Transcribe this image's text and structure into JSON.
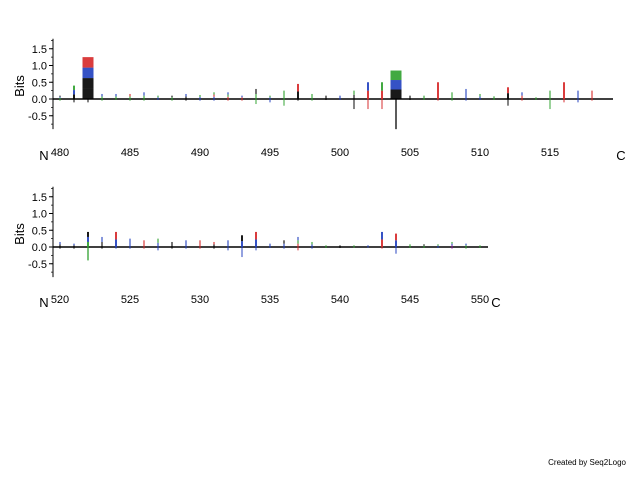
{
  "chart_data": [
    {
      "type": "sequence-logo",
      "ylabel": "Bits",
      "yticks": [
        "1.5",
        "1.0",
        "0.5",
        "0.0",
        "-0.5"
      ],
      "ylim": [
        -0.9,
        1.8
      ],
      "n_label": "N",
      "c_label": "C",
      "x_tick_labels": [
        "480",
        "485",
        "490",
        "495",
        "500",
        "505",
        "510",
        "515"
      ],
      "positions": [
        480,
        481,
        482,
        483,
        484,
        485,
        486,
        487,
        488,
        489,
        490,
        491,
        492,
        493,
        494,
        495,
        496,
        497,
        498,
        499,
        500,
        501,
        502,
        503,
        504,
        505,
        506,
        507,
        508,
        509,
        510,
        511,
        512,
        513,
        514,
        515,
        516,
        517,
        518
      ],
      "columns": [
        {
          "pos": 480,
          "up": 0.1,
          "down": -0.05,
          "colors": [
            "#2ca02c",
            "#1f3fbf",
            "#000000"
          ]
        },
        {
          "pos": 481,
          "up": 0.4,
          "down": -0.1,
          "colors": [
            "#000000",
            "#1f3fbf",
            "#2ca02c"
          ]
        },
        {
          "pos": 482,
          "up": 1.25,
          "down": -0.1,
          "colors": [
            "#000000",
            "#000000",
            "#1f3fbf",
            "#d62728"
          ]
        },
        {
          "pos": 483,
          "up": 0.15,
          "down": -0.05,
          "colors": [
            "#2ca02c",
            "#1f3fbf"
          ]
        },
        {
          "pos": 484,
          "up": 0.15,
          "down": -0.03,
          "colors": [
            "#2ca02c",
            "#1f3fbf"
          ]
        },
        {
          "pos": 485,
          "up": 0.15,
          "down": -0.05,
          "colors": [
            "#2ca02c",
            "#d62728"
          ]
        },
        {
          "pos": 486,
          "up": 0.2,
          "down": -0.05,
          "colors": [
            "#2ca02c",
            "#1f3fbf"
          ]
        },
        {
          "pos": 487,
          "up": 0.1,
          "down": -0.03,
          "colors": [
            "#1f3fbf",
            "#2ca02c"
          ]
        },
        {
          "pos": 488,
          "up": 0.1,
          "down": -0.05,
          "colors": [
            "#2ca02c",
            "#000000"
          ]
        },
        {
          "pos": 489,
          "up": 0.15,
          "down": -0.05,
          "colors": [
            "#000000",
            "#1f3fbf"
          ]
        },
        {
          "pos": 490,
          "up": 0.12,
          "down": -0.05,
          "colors": [
            "#1f3fbf",
            "#2ca02c"
          ]
        },
        {
          "pos": 491,
          "up": 0.2,
          "down": -0.05,
          "colors": [
            "#1f3fbf",
            "#d62728",
            "#2ca02c"
          ]
        },
        {
          "pos": 492,
          "up": 0.2,
          "down": -0.05,
          "colors": [
            "#d62728",
            "#2ca02c",
            "#1f3fbf"
          ]
        },
        {
          "pos": 493,
          "up": 0.1,
          "down": -0.05,
          "colors": [
            "#d62728",
            "#1f3fbf"
          ]
        },
        {
          "pos": 494,
          "up": 0.3,
          "down": -0.15,
          "colors": [
            "#2ca02c",
            "#000000"
          ]
        },
        {
          "pos": 495,
          "up": 0.1,
          "down": -0.1,
          "colors": [
            "#1f3fbf",
            "#2ca02c"
          ]
        },
        {
          "pos": 496,
          "up": 0.25,
          "down": -0.2,
          "colors": [
            "#2ca02c"
          ]
        },
        {
          "pos": 497,
          "up": 0.45,
          "down": -0.05,
          "colors": [
            "#000000",
            "#d62728"
          ]
        },
        {
          "pos": 498,
          "up": 0.15,
          "down": -0.05,
          "colors": [
            "#2ca02c"
          ]
        },
        {
          "pos": 499,
          "up": 0.1,
          "down": -0.03,
          "colors": [
            "#000000"
          ]
        },
        {
          "pos": 500,
          "up": 0.1,
          "down": -0.03,
          "colors": [
            "#1f3fbf"
          ]
        },
        {
          "pos": 501,
          "up": 0.25,
          "down": -0.3,
          "colors": [
            "#000000",
            "#2ca02c"
          ]
        },
        {
          "pos": 502,
          "up": 0.5,
          "down": -0.3,
          "colors": [
            "#d62728",
            "#1f3fbf"
          ]
        },
        {
          "pos": 503,
          "up": 0.5,
          "down": -0.3,
          "colors": [
            "#d62728",
            "#2ca02c"
          ]
        },
        {
          "pos": 504,
          "up": 0.85,
          "down": -0.9,
          "colors": [
            "#000000",
            "#1f3fbf",
            "#2ca02c"
          ]
        },
        {
          "pos": 505,
          "up": 0.1,
          "down": -0.03,
          "colors": [
            "#000000"
          ]
        },
        {
          "pos": 506,
          "up": 0.1,
          "down": -0.03,
          "colors": [
            "#2ca02c"
          ]
        },
        {
          "pos": 507,
          "up": 0.5,
          "down": -0.05,
          "colors": [
            "#d62728"
          ]
        },
        {
          "pos": 508,
          "up": 0.2,
          "down": -0.05,
          "colors": [
            "#2ca02c"
          ]
        },
        {
          "pos": 509,
          "up": 0.3,
          "down": -0.05,
          "colors": [
            "#1f3fbf"
          ]
        },
        {
          "pos": 510,
          "up": 0.15,
          "down": -0.03,
          "colors": [
            "#1f3fbf",
            "#2ca02c"
          ]
        },
        {
          "pos": 511,
          "up": 0.08,
          "down": -0.03,
          "colors": [
            "#2ca02c"
          ]
        },
        {
          "pos": 512,
          "up": 0.35,
          "down": -0.2,
          "colors": [
            "#000000",
            "#d62728"
          ]
        },
        {
          "pos": 513,
          "up": 0.2,
          "down": -0.05,
          "colors": [
            "#d62728",
            "#1f3fbf"
          ]
        },
        {
          "pos": 514,
          "up": 0.05,
          "down": -0.03,
          "colors": [
            "#2ca02c"
          ]
        },
        {
          "pos": 515,
          "up": 0.25,
          "down": -0.3,
          "colors": [
            "#2ca02c"
          ]
        },
        {
          "pos": 516,
          "up": 0.5,
          "down": -0.1,
          "colors": [
            "#d62728"
          ]
        },
        {
          "pos": 517,
          "up": 0.25,
          "down": -0.1,
          "colors": [
            "#1f3fbf"
          ]
        },
        {
          "pos": 518,
          "up": 0.25,
          "down": -0.05,
          "colors": [
            "#d62728"
          ]
        }
      ]
    },
    {
      "type": "sequence-logo",
      "ylabel": "Bits",
      "yticks": [
        "1.5",
        "1.0",
        "0.5",
        "0.0",
        "-0.5"
      ],
      "ylim": [
        -0.9,
        1.8
      ],
      "n_label": "N",
      "c_label": "C",
      "x_tick_labels": [
        "520",
        "525",
        "530",
        "535",
        "540",
        "545",
        "550"
      ],
      "positions": [
        520,
        521,
        522,
        523,
        524,
        525,
        526,
        527,
        528,
        529,
        530,
        531,
        532,
        533,
        534,
        535,
        536,
        537,
        538,
        539,
        540,
        541,
        542,
        543,
        544,
        545,
        546,
        547,
        548,
        549,
        550
      ],
      "columns": [
        {
          "pos": 520,
          "up": 0.15,
          "down": -0.05,
          "colors": [
            "#000000",
            "#1f3fbf"
          ]
        },
        {
          "pos": 521,
          "up": 0.1,
          "down": -0.05,
          "colors": [
            "#000000",
            "#1f3fbf"
          ]
        },
        {
          "pos": 522,
          "up": 0.45,
          "down": -0.4,
          "colors": [
            "#2ca02c",
            "#1f3fbf",
            "#000000"
          ]
        },
        {
          "pos": 523,
          "up": 0.3,
          "down": -0.05,
          "colors": [
            "#000000",
            "#1f3fbf"
          ]
        },
        {
          "pos": 524,
          "up": 0.45,
          "down": -0.05,
          "colors": [
            "#1f3fbf",
            "#d62728"
          ]
        },
        {
          "pos": 525,
          "up": 0.25,
          "down": -0.05,
          "colors": [
            "#1f3fbf"
          ]
        },
        {
          "pos": 526,
          "up": 0.2,
          "down": -0.05,
          "colors": [
            "#d62728"
          ]
        },
        {
          "pos": 527,
          "up": 0.25,
          "down": -0.1,
          "colors": [
            "#1f3fbf",
            "#2ca02c"
          ]
        },
        {
          "pos": 528,
          "up": 0.15,
          "down": -0.05,
          "colors": [
            "#000000"
          ]
        },
        {
          "pos": 529,
          "up": 0.2,
          "down": -0.05,
          "colors": [
            "#1f3fbf"
          ]
        },
        {
          "pos": 530,
          "up": 0.2,
          "down": -0.05,
          "colors": [
            "#d62728"
          ]
        },
        {
          "pos": 531,
          "up": 0.15,
          "down": -0.05,
          "colors": [
            "#000000",
            "#d62728"
          ]
        },
        {
          "pos": 532,
          "up": 0.2,
          "down": -0.1,
          "colors": [
            "#1f3fbf"
          ]
        },
        {
          "pos": 533,
          "up": 0.35,
          "down": -0.3,
          "colors": [
            "#1f3fbf",
            "#000000"
          ]
        },
        {
          "pos": 534,
          "up": 0.45,
          "down": -0.1,
          "colors": [
            "#1f3fbf",
            "#d62728"
          ]
        },
        {
          "pos": 535,
          "up": 0.1,
          "down": -0.03,
          "colors": [
            "#1f3fbf"
          ]
        },
        {
          "pos": 536,
          "up": 0.2,
          "down": -0.05,
          "colors": [
            "#1f3fbf",
            "#000000"
          ]
        },
        {
          "pos": 537,
          "up": 0.3,
          "down": -0.1,
          "colors": [
            "#d62728",
            "#2ca02c",
            "#1f3fbf"
          ]
        },
        {
          "pos": 538,
          "up": 0.15,
          "down": -0.05,
          "colors": [
            "#1f3fbf",
            "#2ca02c"
          ]
        },
        {
          "pos": 539,
          "up": 0.05,
          "down": -0.03,
          "colors": [
            "#2ca02c"
          ]
        },
        {
          "pos": 540,
          "up": 0.05,
          "down": -0.03,
          "colors": [
            "#000000"
          ]
        },
        {
          "pos": 541,
          "up": 0.05,
          "down": -0.02,
          "colors": [
            "#2ca02c"
          ]
        },
        {
          "pos": 542,
          "up": 0.05,
          "down": -0.02,
          "colors": [
            "#1f3fbf"
          ]
        },
        {
          "pos": 543,
          "up": 0.45,
          "down": -0.05,
          "colors": [
            "#d62728",
            "#1f3fbf"
          ]
        },
        {
          "pos": 544,
          "up": 0.4,
          "down": -0.2,
          "colors": [
            "#1f3fbf",
            "#d62728"
          ]
        },
        {
          "pos": 545,
          "up": 0.08,
          "down": -0.03,
          "colors": [
            "#2ca02c"
          ]
        },
        {
          "pos": 546,
          "up": 0.08,
          "down": -0.03,
          "colors": [
            "#2ca02c",
            "#000000"
          ]
        },
        {
          "pos": 547,
          "up": 0.08,
          "down": -0.03,
          "colors": [
            "#1f3fbf",
            "#2ca02c"
          ]
        },
        {
          "pos": 548,
          "up": 0.15,
          "down": -0.05,
          "colors": [
            "#8b1a9a",
            "#1f3fbf",
            "#2ca02c"
          ]
        },
        {
          "pos": 549,
          "up": 0.1,
          "down": -0.05,
          "colors": [
            "#2ca02c",
            "#1f3fbf"
          ]
        },
        {
          "pos": 550,
          "up": 0.05,
          "down": -0.03,
          "colors": [
            "#2ca02c"
          ]
        }
      ]
    }
  ],
  "footer": {
    "credit": "Created by Seq2Logo"
  }
}
